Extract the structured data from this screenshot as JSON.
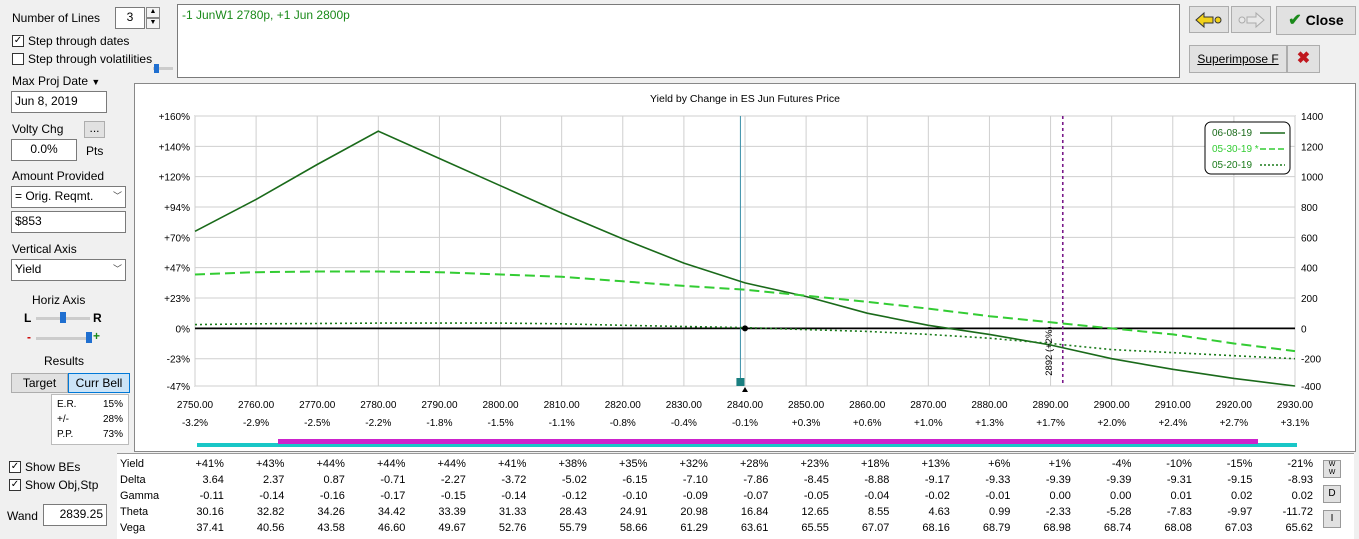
{
  "left_panel": {
    "num_lines_label": "Number of Lines",
    "num_lines_value": "3",
    "step_dates_label": "Step through dates",
    "step_dates_checked": true,
    "step_vols_label": "Step through volatilities",
    "step_vols_checked": false,
    "max_proj_date_label": "Max Proj Date",
    "max_proj_date_value": "Jun 8, 2019",
    "volty_chg_label": "Volty Chg",
    "volty_btn_label": "...",
    "volty_chg_value": "0.0%",
    "pts_label": "Pts",
    "amount_label": "Amount Provided",
    "amount_value": "= Orig. Reqmt.",
    "amount_dollar": "$853",
    "vertical_axis_label": "Vertical Axis",
    "vertical_axis_value": "Yield",
    "horiz_axis_label": "Horiz Axis",
    "slider_left": "L",
    "slider_right": "R",
    "minus": "-",
    "plus": "+",
    "results_label": "Results",
    "target_label": "Target",
    "curr_bell_label": "Curr Bell",
    "stats": [
      {
        "k": "E.R.",
        "v": "15%"
      },
      {
        "k": "+/-",
        "v": "28%"
      },
      {
        "k": "P.P.",
        "v": "73%"
      }
    ],
    "show_bes_label": "Show BEs",
    "show_bes_checked": true,
    "show_obj_label": "Show Obj,Stp",
    "show_obj_checked": true,
    "wand_label": "Wand",
    "wand_value": "2839.25"
  },
  "description": "-1 JunW1 2780p, +1 Jun 2800p",
  "top_right": {
    "close_label": "Close",
    "superimpose_label": "Superimpose F",
    "colors": {
      "close_check": "#1a8a1a",
      "x_red": "#c0181e"
    }
  },
  "chart_data": {
    "type": "line",
    "title": "Yield by Change in ES Jun Futures Price",
    "x_ticks": [
      2750,
      2760,
      2770,
      2780,
      2790,
      2800,
      2810,
      2820,
      2830,
      2840,
      2850,
      2860,
      2870,
      2880,
      2890,
      2900,
      2910,
      2920,
      2930
    ],
    "x_tick_labels": [
      "2750.00",
      "2760.00",
      "2770.00",
      "2780.00",
      "2790.00",
      "2800.00",
      "2810.00",
      "2820.00",
      "2830.00",
      "2840.00",
      "2850.00",
      "2860.00",
      "2870.00",
      "2880.00",
      "2890.00",
      "2900.00",
      "2910.00",
      "2920.00",
      "2930.00"
    ],
    "pct_labels": [
      "-3.2%",
      "-2.9%",
      "-2.5%",
      "-2.2%",
      "-1.8%",
      "-1.5%",
      "-1.1%",
      "-0.8%",
      "-0.4%",
      "-0.1%",
      "+0.3%",
      "+0.6%",
      "+1.0%",
      "+1.3%",
      "+1.7%",
      "+2.0%",
      "+2.4%",
      "+2.7%",
      "+3.1%"
    ],
    "xlim": [
      2750,
      2930
    ],
    "ylim": [
      -380,
      1400
    ],
    "y_left_labels": [
      "+160%",
      "+140%",
      "+120%",
      "+94%",
      "+70%",
      "+47%",
      "+23%",
      "0%",
      "-23%",
      "-47%"
    ],
    "y_right_ticks": [
      1400,
      1200,
      1000,
      800,
      600,
      400,
      200,
      0,
      -200,
      -400
    ],
    "x": [
      2750,
      2760,
      2770,
      2780,
      2790,
      2800,
      2810,
      2820,
      2830,
      2840,
      2850,
      2860,
      2870,
      2880,
      2890,
      2900,
      2910,
      2920,
      2930
    ],
    "series": [
      {
        "name": "06-08-19",
        "style": "solid",
        "color": "#1a6a1a",
        "values": [
          640,
          850,
          1080,
          1300,
          1120,
          940,
          760,
          590,
          430,
          300,
          210,
          100,
          20,
          -40,
          -110,
          -200,
          -270,
          -330,
          -380
        ]
      },
      {
        "name": "05-30-19 *",
        "style": "dashed",
        "color": "#33cc33",
        "values": [
          355,
          370,
          375,
          375,
          370,
          355,
          340,
          310,
          280,
          255,
          215,
          175,
          130,
          80,
          40,
          0,
          -40,
          -100,
          -150
        ]
      },
      {
        "name": "05-20-19",
        "style": "dotted",
        "color": "#1a7a1a",
        "values": [
          25,
          30,
          32,
          35,
          35,
          35,
          30,
          20,
          12,
          5,
          -8,
          -20,
          -40,
          -65,
          -100,
          -140,
          -160,
          -180,
          -200
        ]
      }
    ],
    "wand_x": 2839.25,
    "marker_x": 2840,
    "be_x": 2892,
    "be_label": "2892 (+2%)",
    "legend_position": "top-right",
    "colors": {
      "wand_line": "#3a8fa8",
      "be_line": "#7a1a8a",
      "zero_line": "#000000"
    }
  },
  "bars": {
    "cyan": "#19c7c7",
    "magenta": "#cc22cc"
  },
  "table": {
    "rows": [
      {
        "label": "Yield",
        "values": [
          "+41%",
          "+43%",
          "+44%",
          "+44%",
          "+44%",
          "+41%",
          "+38%",
          "+35%",
          "+32%",
          "+28%",
          "+23%",
          "+18%",
          "+13%",
          "+6%",
          "+1%",
          "-4%",
          "-10%",
          "-15%",
          "-21%"
        ]
      },
      {
        "label": "Delta",
        "values": [
          "3.64",
          "2.37",
          "0.87",
          "-0.71",
          "-2.27",
          "-3.72",
          "-5.02",
          "-6.15",
          "-7.10",
          "-7.86",
          "-8.45",
          "-8.88",
          "-9.17",
          "-9.33",
          "-9.39",
          "-9.39",
          "-9.31",
          "-9.15",
          "-8.93"
        ]
      },
      {
        "label": "Gamma",
        "values": [
          "-0.11",
          "-0.14",
          "-0.16",
          "-0.17",
          "-0.15",
          "-0.14",
          "-0.12",
          "-0.10",
          "-0.09",
          "-0.07",
          "-0.05",
          "-0.04",
          "-0.02",
          "-0.01",
          "0.00",
          "0.00",
          "0.01",
          "0.02",
          "0.02"
        ]
      },
      {
        "label": "Theta",
        "values": [
          "30.16",
          "32.82",
          "34.26",
          "34.42",
          "33.39",
          "31.33",
          "28.43",
          "24.91",
          "20.98",
          "16.84",
          "12.65",
          "8.55",
          "4.63",
          "0.99",
          "-2.33",
          "-5.28",
          "-7.83",
          "-9.97",
          "-11.72"
        ]
      },
      {
        "label": "Vega",
        "values": [
          "37.41",
          "40.56",
          "43.58",
          "46.60",
          "49.67",
          "52.76",
          "55.79",
          "58.66",
          "61.29",
          "63.61",
          "65.55",
          "67.07",
          "68.16",
          "68.79",
          "68.98",
          "68.74",
          "68.08",
          "67.03",
          "65.62"
        ]
      }
    ],
    "side_buttons": [
      "W",
      "D",
      "I"
    ]
  }
}
